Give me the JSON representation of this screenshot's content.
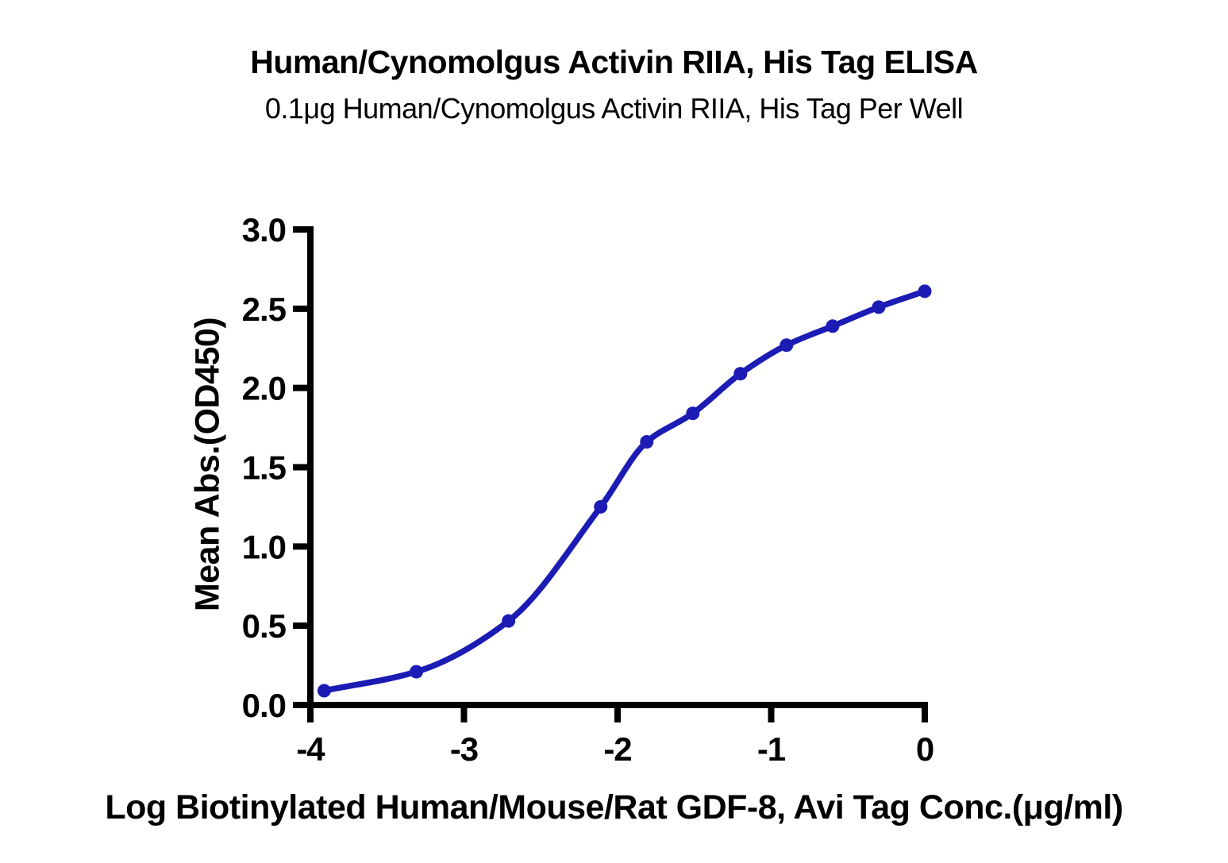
{
  "chart_data": {
    "type": "scatter",
    "title": "Human/Cynomolgus Activin RIIA, His Tag ELISA",
    "subtitle": "0.1μg Human/Cynomolgus Activin RIIA, His Tag Per Well",
    "xlabel": "Log Biotinylated Human/Mouse/Rat GDF-8, Avi Tag Conc.(μg/ml)",
    "ylabel": "Mean Abs.(OD450)",
    "xlim": [
      -4,
      0
    ],
    "ylim": [
      0,
      3
    ],
    "x_ticks": {
      "values": [
        -4,
        -3,
        -2,
        -1,
        0
      ],
      "labels": [
        "-4",
        "-3",
        "-2",
        "-1",
        "0"
      ]
    },
    "y_ticks": {
      "values": [
        0,
        0.5,
        1,
        1.5,
        2,
        2.5,
        3
      ],
      "labels": [
        "0.0",
        "0.5",
        "1.0",
        "1.5",
        "2.0",
        "2.5",
        "3.0"
      ]
    },
    "grid": false,
    "legend": "none",
    "series": [
      {
        "marker": "circle",
        "curve": "sigmoidal-4pl-fit",
        "points": [
          {
            "x": -3.91,
            "y": 0.09
          },
          {
            "x": -3.31,
            "y": 0.21
          },
          {
            "x": -2.71,
            "y": 0.53
          },
          {
            "x": -2.11,
            "y": 1.25
          },
          {
            "x": -1.81,
            "y": 1.66
          },
          {
            "x": -1.51,
            "y": 1.84
          },
          {
            "x": -1.2,
            "y": 2.09
          },
          {
            "x": -0.9,
            "y": 2.27
          },
          {
            "x": -0.6,
            "y": 2.39
          },
          {
            "x": -0.3,
            "y": 2.51
          },
          {
            "x": 0.0,
            "y": 2.61
          }
        ]
      }
    ],
    "colors": {
      "curve": "#1c1cb4",
      "marker": "#1c1cb4",
      "axis": "#000000",
      "text": "#000000",
      "background": "#ffffff"
    }
  }
}
